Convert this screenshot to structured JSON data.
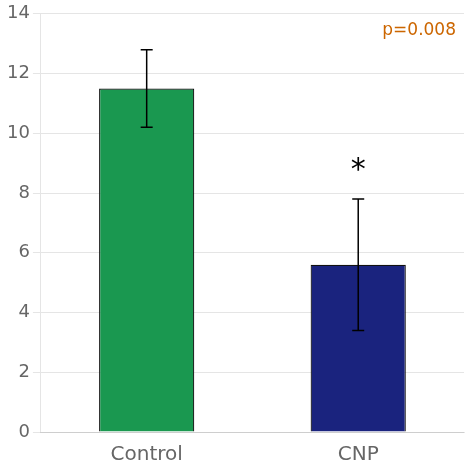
{
  "chart_data": {
    "type": "bar",
    "categories": [
      "Control",
      "CNP"
    ],
    "values": [
      11.5,
      5.6
    ],
    "errors": [
      1.3,
      2.2
    ],
    "colors": [
      "#1a9850",
      "#1a237e"
    ],
    "ylim": [
      0,
      14
    ],
    "yticks": [
      0,
      2,
      4,
      6,
      8,
      10,
      12,
      14
    ],
    "grid": true,
    "annotations": [
      {
        "text": "p=0.008",
        "color": "#cc6600"
      },
      {
        "text": "*",
        "x": "CNP",
        "y": 8.3
      }
    ]
  }
}
